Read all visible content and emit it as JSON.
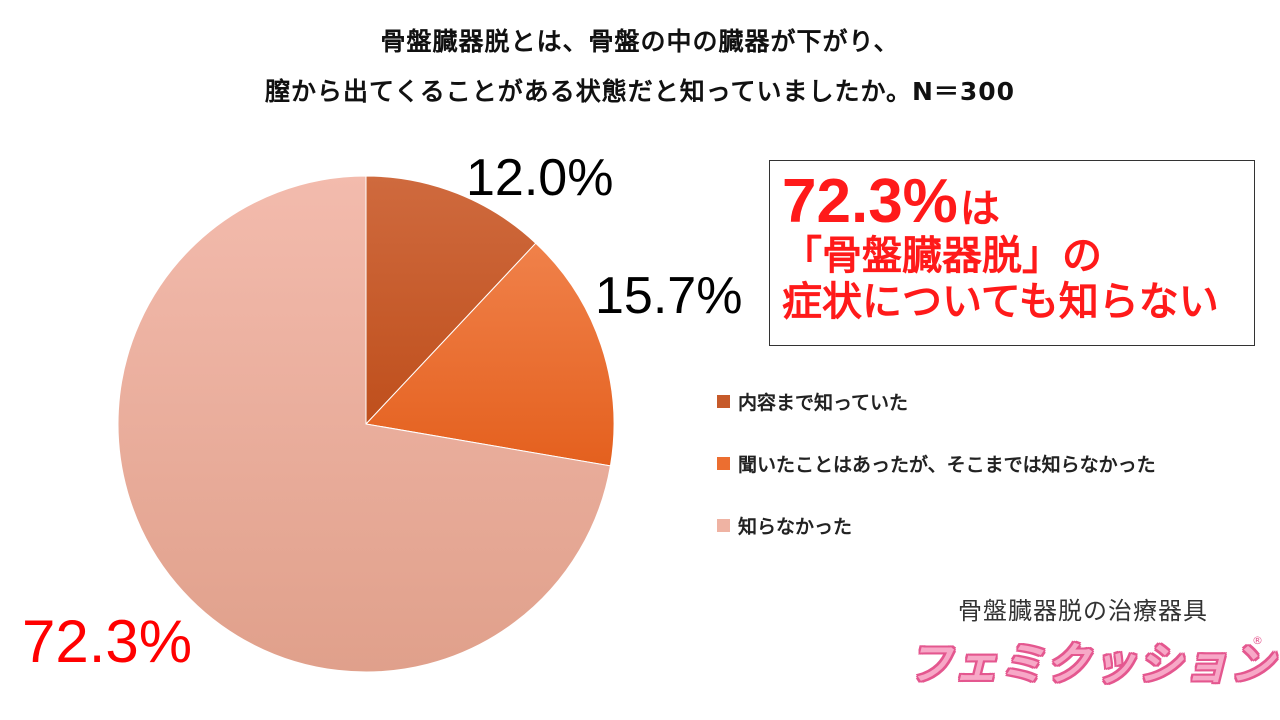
{
  "chart_data": {
    "type": "pie",
    "title_line1": "骨盤臓器脱とは、骨盤の中の臓器が下がり、",
    "title_line2": "膣から出てくることがある状態だと知っていましたか。N＝300",
    "categories": [
      "内容まで知っていた",
      "聞いたことはあったが、そこまでは知らなかった",
      "知らなかった"
    ],
    "values": [
      12.0,
      15.7,
      72.3
    ],
    "value_labels": [
      "12.0%",
      "15.7%",
      "72.3%"
    ],
    "colors": [
      "#c65a2a",
      "#ec6e30",
      "#efb3a3"
    ],
    "gradients": [
      [
        "#cf6a3e",
        "#bf4f1c"
      ],
      [
        "#f0814a",
        "#e4601e"
      ],
      [
        "#f3bbad",
        "#e0a08b"
      ]
    ],
    "legend_position": "right",
    "start_angle": "12 o'clock",
    "direction": "clockwise"
  },
  "callout": {
    "number": "72.3%",
    "number_suffix": "は",
    "line2": "「骨盤臓器脱」の",
    "line3": "症状についても知らない"
  },
  "brand": {
    "subtitle": "骨盤臓器脱の治療器具",
    "logo": "フェミクッション",
    "registered": "®"
  }
}
